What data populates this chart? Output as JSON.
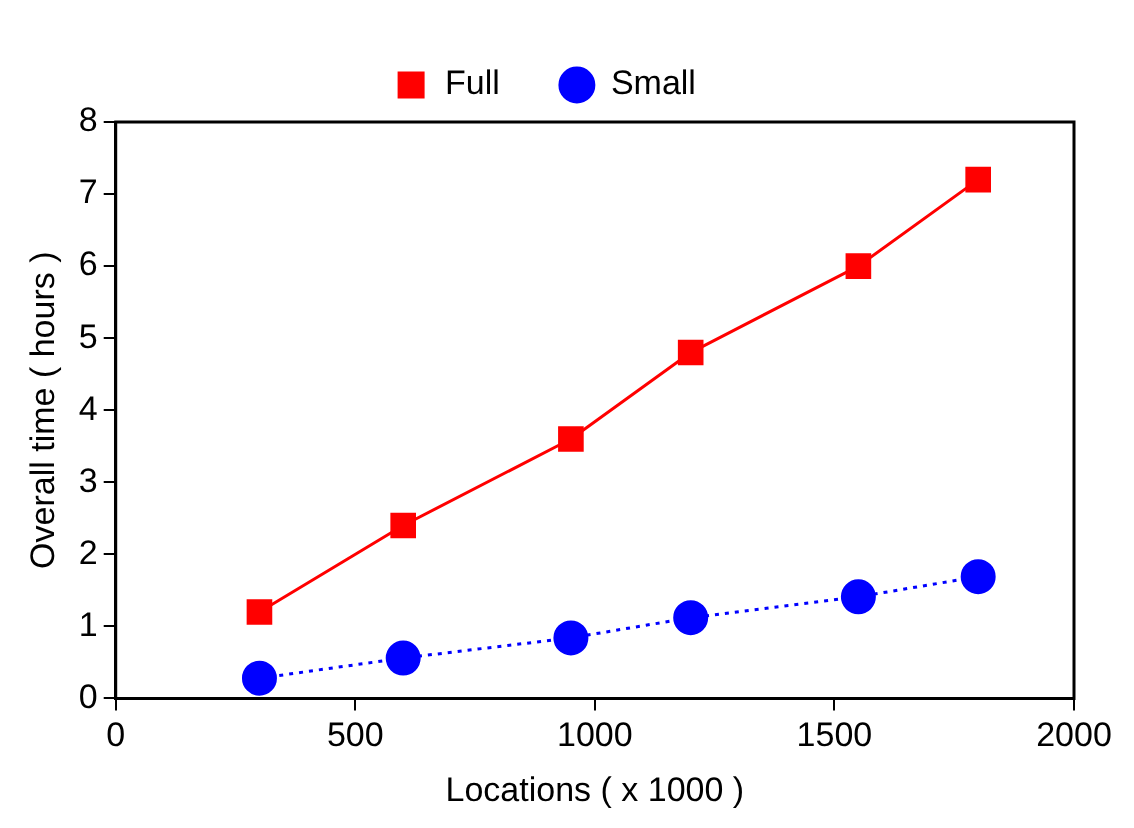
{
  "chart_data": {
    "type": "line",
    "xlabel": "Locations ( x 1000 )",
    "ylabel": "Overall time ( hours )",
    "x": [
      300,
      600,
      950,
      1200,
      1550,
      1800
    ],
    "series": [
      {
        "name": "Full",
        "color": "#ff0000",
        "marker": "square",
        "line_style": "solid",
        "values": [
          1.2,
          2.4,
          3.6,
          4.8,
          6.0,
          7.2
        ]
      },
      {
        "name": "Small",
        "color": "#0000ff",
        "marker": "circle",
        "line_style": "dotted",
        "values": [
          0.28,
          0.56,
          0.84,
          1.12,
          1.41,
          1.69
        ]
      }
    ],
    "xlim": [
      0,
      2000
    ],
    "xticks": [
      0,
      500,
      1000,
      1500,
      2000
    ],
    "ylim": [
      0,
      8
    ],
    "yticks": [
      0,
      1,
      2,
      3,
      4,
      5,
      6,
      7,
      8
    ],
    "grid": false,
    "legend": "top"
  }
}
